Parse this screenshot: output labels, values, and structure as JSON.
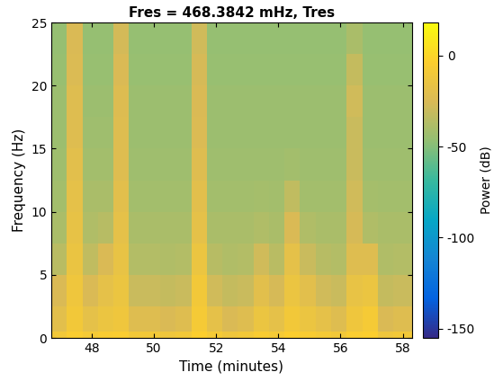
{
  "chart_data": {
    "type": "heatmap",
    "title": "Fres = 468.3842 mHz, Tres",
    "x_label": "Time (minutes)",
    "y_label": "Frequency (Hz)",
    "xlim": [
      46.7,
      58.3
    ],
    "ylim": [
      0,
      25
    ],
    "xticks": [
      48,
      50,
      52,
      54,
      56,
      58
    ],
    "yticks": [
      0,
      5,
      10,
      15,
      20,
      25
    ],
    "x_edges": [
      46.7,
      47.2,
      47.7,
      48.2,
      48.7,
      49.2,
      49.7,
      50.2,
      50.7,
      51.2,
      51.7,
      52.2,
      52.7,
      53.2,
      53.7,
      54.2,
      54.7,
      55.2,
      55.7,
      56.2,
      56.7,
      57.2,
      57.7,
      58.3
    ],
    "y_edges": [
      0,
      0.5,
      2.5,
      5,
      7.5,
      10,
      12.5,
      15,
      17.5,
      20,
      22.5,
      25
    ],
    "cells": [
      [
        -10,
        -5,
        -8,
        -6,
        -5,
        -10,
        -10,
        -12,
        -10,
        -4,
        -8,
        -12,
        -10,
        -6,
        -8,
        -4,
        -6,
        -8,
        -10,
        -5,
        -4,
        -12,
        -10
      ],
      [
        -20,
        -10,
        -18,
        -14,
        -12,
        -22,
        -22,
        -25,
        -22,
        -8,
        -18,
        -25,
        -22,
        -14,
        -18,
        -10,
        -14,
        -18,
        -22,
        -12,
        -8,
        -25,
        -22
      ],
      [
        -25,
        -12,
        -25,
        -18,
        -14,
        -30,
        -30,
        -32,
        -30,
        -10,
        -28,
        -32,
        -30,
        -20,
        -26,
        -14,
        -20,
        -28,
        -30,
        -16,
        -14,
        -32,
        -30
      ],
      [
        -35,
        -15,
        -33,
        -25,
        -16,
        -37,
        -37,
        -38,
        -37,
        -14,
        -36,
        -38,
        -37,
        -28,
        -35,
        -18,
        -30,
        -36,
        -37,
        -22,
        -22,
        -38,
        -37
      ],
      [
        -40,
        -17,
        -38,
        -36,
        -18,
        -40,
        -40,
        -40,
        -40,
        -18,
        -40,
        -40,
        -40,
        -38,
        -40,
        -25,
        -38,
        -40,
        -40,
        -26,
        -38,
        -40,
        -40
      ],
      [
        -42,
        -18,
        -40,
        -40,
        -20,
        -42,
        -42,
        -42,
        -42,
        -20,
        -42,
        -42,
        -42,
        -41,
        -42,
        -33,
        -42,
        -42,
        -42,
        -28,
        -41,
        -42,
        -42
      ],
      [
        -43,
        -20,
        -42,
        -42,
        -22,
        -43,
        -43,
        -43,
        -43,
        -22,
        -43,
        -43,
        -43,
        -43,
        -43,
        -42,
        -43,
        -43,
        -43,
        -30,
        -43,
        -43,
        -43
      ],
      [
        -44,
        -22,
        -43,
        -43,
        -22,
        -44,
        -44,
        -44,
        -44,
        -24,
        -44,
        -44,
        -44,
        -44,
        -44,
        -44,
        -44,
        -44,
        -44,
        -30,
        -44,
        -44,
        -44
      ],
      [
        -44,
        -22,
        -44,
        -44,
        -23,
        -44,
        -44,
        -44,
        -44,
        -25,
        -44,
        -44,
        -44,
        -44,
        -44,
        -44,
        -44,
        -44,
        -44,
        -28,
        -44,
        -44,
        -44
      ],
      [
        -45,
        -24,
        -45,
        -45,
        -25,
        -45,
        -45,
        -45,
        -45,
        -26,
        -45,
        -45,
        -45,
        -45,
        -45,
        -45,
        -45,
        -45,
        -45,
        -32,
        -45,
        -45,
        -45
      ],
      [
        -46,
        -25,
        -46,
        -46,
        -27,
        -46,
        -46,
        -46,
        -46,
        -28,
        -46,
        -46,
        -46,
        -46,
        -46,
        -46,
        -46,
        -46,
        -46,
        -40,
        -46,
        -46,
        -46
      ]
    ],
    "colorbar": {
      "label": "Power (dB)",
      "lim": [
        -155,
        18
      ],
      "ticks": [
        -150,
        -100,
        -50,
        0
      ]
    }
  }
}
